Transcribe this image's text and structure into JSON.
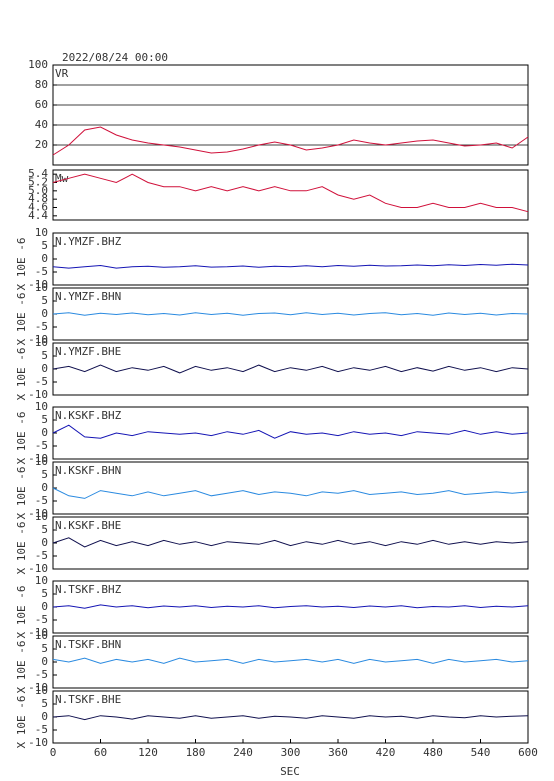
{
  "header": "2022/08/24 00:00",
  "x_label": "SEC",
  "xlim": [
    0,
    600
  ],
  "xticks": [
    0,
    60,
    120,
    180,
    240,
    300,
    360,
    420,
    480,
    540,
    600
  ],
  "x": [
    0,
    20,
    40,
    60,
    80,
    100,
    120,
    140,
    160,
    180,
    200,
    220,
    240,
    260,
    280,
    300,
    320,
    340,
    360,
    380,
    400,
    420,
    440,
    460,
    480,
    500,
    520,
    540,
    560,
    580,
    600
  ],
  "chart_data": [
    {
      "type": "line",
      "title": "VR",
      "color": "#d0103a",
      "grid": true,
      "ylim": [
        0,
        100
      ],
      "yticks": [
        20,
        40,
        60,
        80,
        100
      ],
      "values": [
        10,
        20,
        35,
        38,
        30,
        25,
        22,
        20,
        18,
        15,
        12,
        13,
        16,
        20,
        23,
        20,
        15,
        17,
        20,
        25,
        22,
        20,
        22,
        24,
        25,
        22,
        19,
        20,
        22,
        17,
        28
      ]
    },
    {
      "type": "line",
      "title": "Mw",
      "color": "#d0103a",
      "grid": false,
      "ylim": [
        4.3,
        5.5
      ],
      "yticks": [
        5.4,
        5.2,
        {
          "value": 5,
          "label": "5.0"
        },
        4.8,
        4.6,
        4.4
      ],
      "values": [
        5.2,
        5.3,
        5.4,
        5.3,
        5.2,
        5.4,
        5.2,
        5.1,
        5.1,
        5.0,
        5.1,
        5.0,
        5.1,
        5.0,
        5.1,
        5.0,
        5.0,
        5.1,
        4.9,
        4.8,
        4.9,
        4.7,
        4.6,
        4.6,
        4.7,
        4.6,
        4.6,
        4.7,
        4.6,
        4.6,
        4.5
      ]
    },
    {
      "type": "line",
      "title": "N.YMZF.BHZ",
      "ylabel": "X 10E -6",
      "color": "#1414b4",
      "grid": false,
      "ylim": [
        -10,
        10
      ],
      "yticks": [
        10,
        5,
        0,
        -5,
        -10
      ],
      "values": [
        -3,
        -3.5,
        -3,
        -2.5,
        -3.5,
        -3,
        -2.8,
        -3.2,
        -3,
        -2.6,
        -3.1,
        -3,
        -2.7,
        -3.2,
        -2.8,
        -3,
        -2.6,
        -3,
        -2.5,
        -2.8,
        -2.4,
        -2.7,
        -2.6,
        -2.3,
        -2.6,
        -2.2,
        -2.5,
        -2.1,
        -2.4,
        -2,
        -2.3
      ]
    },
    {
      "type": "line",
      "title": "N.YMZF.BHN",
      "ylabel": "X 10E -6",
      "color": "#2a8ae0",
      "grid": false,
      "ylim": [
        -10,
        10
      ],
      "yticks": [
        10,
        5,
        0,
        -5,
        -10
      ],
      "values": [
        0,
        0.5,
        -0.5,
        0.3,
        -0.2,
        0.4,
        -0.3,
        0.2,
        -0.4,
        0.5,
        -0.2,
        0.3,
        -0.5,
        0.2,
        0.4,
        -0.3,
        0.5,
        -0.2,
        0.3,
        -0.4,
        0.2,
        0.5,
        -0.3,
        0.2,
        -0.5,
        0.4,
        -0.2,
        0.3,
        -0.4,
        0.2,
        0
      ]
    },
    {
      "type": "line",
      "title": "N.YMZF.BHE",
      "ylabel": "X 10E -6",
      "color": "#10104e",
      "grid": false,
      "ylim": [
        -10,
        10
      ],
      "yticks": [
        10,
        5,
        0,
        -5,
        -10
      ],
      "values": [
        0,
        1,
        -1,
        1.5,
        -1,
        0.5,
        -0.5,
        1,
        -1.5,
        1,
        -0.5,
        0.5,
        -1,
        1.5,
        -1,
        0.5,
        -0.5,
        1,
        -1,
        0.5,
        -0.5,
        1,
        -1,
        0.5,
        -0.8,
        1,
        -0.5,
        0.5,
        -1,
        0.5,
        0
      ]
    },
    {
      "type": "line",
      "title": "N.KSKF.BHZ",
      "ylabel": "X 10E -6",
      "color": "#1414b4",
      "grid": false,
      "ylim": [
        -10,
        10
      ],
      "yticks": [
        10,
        5,
        0,
        -5,
        -10
      ],
      "values": [
        0,
        3,
        -1.5,
        -2,
        0,
        -1,
        0.5,
        0,
        -0.5,
        0,
        -1,
        0.5,
        -0.5,
        1,
        -2,
        0.5,
        -0.5,
        0,
        -1,
        0.5,
        -0.5,
        0,
        -1,
        0.5,
        0,
        -0.5,
        1,
        -0.5,
        0.5,
        -0.5,
        0
      ]
    },
    {
      "type": "line",
      "title": "N.KSKF.BHN",
      "ylabel": "X 10E -6",
      "color": "#2a8ae0",
      "grid": false,
      "ylim": [
        -10,
        10
      ],
      "yticks": [
        10,
        5,
        0,
        -5,
        -10
      ],
      "values": [
        0,
        -3,
        -4,
        -1,
        -2,
        -3,
        -1.5,
        -3,
        -2,
        -1,
        -3,
        -2,
        -1,
        -2.5,
        -1.5,
        -2,
        -3,
        -1.5,
        -2,
        -1,
        -2.5,
        -2,
        -1.5,
        -2.5,
        -2,
        -1,
        -2.5,
        -2,
        -1.5,
        -2,
        -1.5
      ]
    },
    {
      "type": "line",
      "title": "N.KSKF.BHE",
      "ylabel": "X 10E -6",
      "color": "#10104e",
      "grid": false,
      "ylim": [
        -10,
        10
      ],
      "yticks": [
        10,
        5,
        0,
        -5,
        -10
      ],
      "values": [
        0,
        2,
        -1.5,
        1,
        -1,
        0.5,
        -1,
        1,
        -0.5,
        0.5,
        -1,
        0.5,
        0,
        -0.5,
        1,
        -1,
        0.5,
        -0.5,
        1,
        -0.5,
        0.5,
        -1,
        0.5,
        -0.5,
        1,
        -0.5,
        0.5,
        -0.5,
        0.5,
        0,
        0.5
      ]
    },
    {
      "type": "line",
      "title": "N.TSKF.BHZ",
      "ylabel": "X 10E -6",
      "color": "#1414b4",
      "grid": false,
      "ylim": [
        -10,
        10
      ],
      "yticks": [
        10,
        5,
        0,
        -5,
        -10
      ],
      "values": [
        0,
        0.5,
        -0.5,
        0.8,
        0,
        0.5,
        -0.3,
        0.4,
        0,
        0.5,
        -0.2,
        0.3,
        0,
        0.5,
        -0.3,
        0.2,
        0.5,
        0,
        0.3,
        -0.2,
        0.4,
        0,
        0.5,
        -0.3,
        0.2,
        0,
        0.5,
        -0.2,
        0.3,
        0,
        0.5
      ]
    },
    {
      "type": "line",
      "title": "N.TSKF.BHN",
      "ylabel": "X 10E -6",
      "color": "#2a8ae0",
      "grid": false,
      "ylim": [
        -10,
        10
      ],
      "yticks": [
        10,
        5,
        0,
        -5,
        -10
      ],
      "values": [
        1,
        0,
        1.5,
        -0.5,
        1,
        0,
        1,
        -0.5,
        1.5,
        0,
        0.5,
        1,
        -0.5,
        1,
        0,
        0.5,
        1,
        0,
        1,
        -0.5,
        1,
        0,
        0.5,
        1,
        -0.5,
        1,
        0,
        0.5,
        1,
        0,
        0.5
      ]
    },
    {
      "type": "line",
      "title": "N.TSKF.BHE",
      "ylabel": "X 10E -6",
      "color": "#10104e",
      "grid": false,
      "ylim": [
        -10,
        10
      ],
      "yticks": [
        10,
        5,
        0,
        -5,
        -10
      ],
      "values": [
        0,
        0.5,
        -1,
        0.5,
        0,
        -0.8,
        0.5,
        0,
        -0.5,
        0.5,
        -0.5,
        0,
        0.5,
        -0.5,
        0.3,
        0,
        -0.5,
        0.5,
        0,
        -0.5,
        0.5,
        0,
        0.3,
        -0.5,
        0.5,
        0,
        -0.3,
        0.5,
        0,
        0.3,
        0.5
      ]
    }
  ]
}
